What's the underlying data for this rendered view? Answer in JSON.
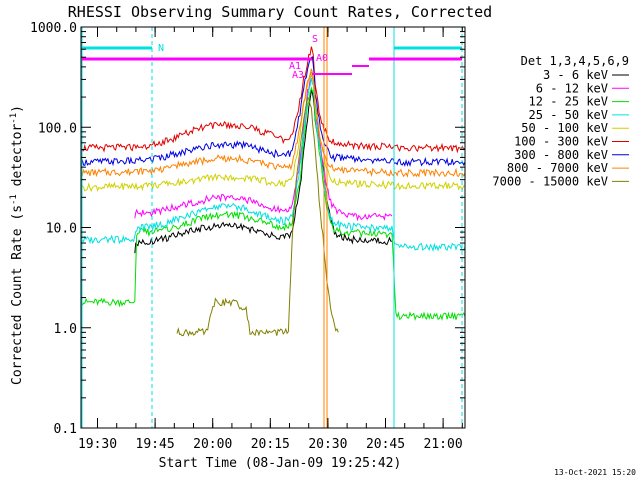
{
  "chart_data": {
    "type": "line",
    "title": "RHESSI Observing Summary Count Rates, Corrected",
    "xlabel": "Start Time (08-Jan-09 19:25:42)",
    "ylabel_main": "Corrected Count Rate (s",
    "ylabel_sup1": "-1",
    "ylabel_mid": " detector",
    "ylabel_sup2": "-1",
    "ylabel_end": ")",
    "yscale": "log",
    "ylim": [
      0.1,
      1000
    ],
    "xlim_minutes": [
      0,
      100
    ],
    "x_ticks": [
      {
        "label": "19:30",
        "t": 4.3
      },
      {
        "label": "19:45",
        "t": 19.3
      },
      {
        "label": "20:00",
        "t": 34.3
      },
      {
        "label": "20:15",
        "t": 49.3
      },
      {
        "label": "20:30",
        "t": 64.3
      },
      {
        "label": "20:45",
        "t": 79.3
      },
      {
        "label": "21:00",
        "t": 94.3
      }
    ],
    "y_ticks": [
      {
        "label": "1000.0",
        "v": 1000
      },
      {
        "label": "100.0",
        "v": 100
      },
      {
        "label": "10.0",
        "v": 10
      },
      {
        "label": "1.0",
        "v": 1
      },
      {
        "label": "0.1",
        "v": 0.1
      }
    ],
    "legend_title": "Det 1,3,4,5,6,9",
    "legend": [
      {
        "label": "3 - 6 keV",
        "color": "#000000"
      },
      {
        "label": "6 - 12 keV",
        "color": "#ff00ff"
      },
      {
        "label": "12 - 25 keV",
        "color": "#00e000"
      },
      {
        "label": "25 - 50 keV",
        "color": "#00e0e0"
      },
      {
        "label": "50 - 100 keV",
        "color": "#d0d000"
      },
      {
        "label": "100 - 300 keV",
        "color": "#e00000"
      },
      {
        "label": "300 - 800 keV",
        "color": "#0000e0"
      },
      {
        "label": "800 - 7000 keV",
        "color": "#ff8000"
      },
      {
        "label": "7000 - 15000 keV",
        "color": "#808000"
      }
    ],
    "series": [
      {
        "label": "3 - 6 keV",
        "color": "#000000",
        "x": [
          14.0,
          14.5,
          18,
          22,
          26,
          30,
          34,
          38,
          42,
          46,
          50,
          53,
          55,
          57,
          58,
          59,
          60,
          60.5,
          61,
          62,
          63,
          64,
          65,
          66,
          68,
          70,
          75,
          80,
          81
        ],
        "y": [
          6,
          7,
          7.2,
          7.8,
          8.6,
          9.5,
          10.2,
          10.5,
          10.2,
          9.2,
          8.2,
          7.8,
          9,
          25,
          55,
          120,
          250,
          200,
          120,
          70,
          40,
          20,
          12,
          9,
          8,
          7.6,
          7.5,
          7.3,
          7.3
        ]
      },
      {
        "label": "6 - 12 keV",
        "color": "#ff00ff",
        "x": [
          14.0,
          14.5,
          18,
          22,
          26,
          30,
          34,
          38,
          42,
          46,
          50,
          53,
          55,
          57,
          58,
          59,
          60,
          60.5,
          61,
          62,
          63,
          64,
          65,
          66,
          68,
          70,
          75,
          80,
          81
        ],
        "y": [
          13,
          14,
          14,
          15,
          16.5,
          18,
          19.5,
          20,
          19.5,
          17.5,
          15.5,
          14.5,
          16,
          45,
          100,
          220,
          330,
          280,
          150,
          80,
          45,
          25,
          18,
          15,
          13.5,
          13,
          13,
          13,
          13
        ]
      },
      {
        "label": "12 - 25 keV",
        "color": "#00e000",
        "x": [
          0,
          14.0,
          14.5,
          18,
          22,
          26,
          30,
          34,
          38,
          42,
          46,
          50,
          53,
          55,
          57,
          58,
          59,
          60,
          60.5,
          61,
          62,
          63,
          64,
          65,
          66,
          68,
          70,
          75,
          80,
          81,
          82,
          100
        ],
        "y": [
          1.8,
          1.8,
          9,
          9,
          9.5,
          10.5,
          11.8,
          13,
          13.5,
          13,
          11.8,
          10.5,
          10,
          11,
          30,
          70,
          160,
          260,
          220,
          120,
          60,
          30,
          16,
          11,
          9.5,
          9,
          8.8,
          8.8,
          8.6,
          8.6,
          1.3,
          1.3
        ]
      },
      {
        "label": "25 - 50 keV",
        "color": "#00e0e0",
        "x": [
          0,
          5,
          10,
          14.0,
          14.5,
          18,
          22,
          26,
          30,
          34,
          38,
          42,
          46,
          50,
          53,
          55,
          57,
          58,
          59,
          60,
          60.5,
          61,
          62,
          63,
          64,
          65,
          66,
          68,
          70,
          75,
          80,
          81,
          82,
          90,
          100
        ],
        "y": [
          7.5,
          7.6,
          7.6,
          7.6,
          10,
          10.2,
          11,
          12.5,
          14,
          15.8,
          16.5,
          15.8,
          14,
          12.2,
          11.5,
          13,
          40,
          90,
          200,
          300,
          260,
          140,
          70,
          35,
          18,
          12.5,
          11,
          10.5,
          10.2,
          10,
          9.8,
          9.8,
          6.5,
          6.4,
          6.4
        ]
      },
      {
        "label": "50 - 100 keV",
        "color": "#d0d000",
        "x": [
          0,
          14,
          18,
          22,
          26,
          30,
          34,
          38,
          42,
          46,
          50,
          53,
          55,
          57,
          58,
          59,
          60,
          60.5,
          61,
          62,
          63,
          64,
          65,
          66,
          68,
          70,
          75,
          80,
          81,
          82,
          100
        ],
        "y": [
          25,
          26,
          26,
          27,
          28,
          30,
          31.5,
          32,
          31.5,
          30,
          28,
          27,
          30,
          80,
          170,
          280,
          350,
          300,
          160,
          90,
          55,
          38,
          32,
          29,
          28,
          27.5,
          27,
          26.5,
          26.5,
          26,
          26
        ]
      },
      {
        "label": "100 - 300 keV",
        "color": "#e00000",
        "x": [
          0,
          14,
          18,
          22,
          26,
          30,
          34,
          38,
          42,
          46,
          50,
          53,
          55,
          57,
          58,
          59,
          60,
          60.5,
          61,
          62,
          63,
          64,
          65,
          66,
          68,
          70,
          75,
          80,
          81,
          82,
          100
        ],
        "y": [
          62,
          63,
          66,
          72,
          82,
          95,
          103,
          105,
          102,
          94,
          82,
          75,
          80,
          180,
          300,
          450,
          600,
          500,
          260,
          150,
          105,
          82,
          74,
          70,
          68,
          66,
          65,
          64,
          64,
          62,
          62
        ]
      },
      {
        "label": "300 - 800 keV",
        "color": "#0000e0",
        "x": [
          0,
          14,
          18,
          22,
          26,
          30,
          34,
          38,
          42,
          46,
          50,
          53,
          55,
          57,
          58,
          59,
          60,
          60.5,
          61,
          62,
          63,
          64,
          65,
          66,
          68,
          70,
          75,
          80,
          81,
          82,
          100
        ],
        "y": [
          45,
          46,
          48,
          51,
          56,
          62,
          66,
          67,
          66,
          61,
          55,
          52,
          56,
          140,
          250,
          380,
          520,
          430,
          220,
          120,
          78,
          60,
          53,
          50,
          49,
          48,
          47,
          46,
          46,
          45,
          45
        ]
      },
      {
        "label": "800 - 7000 keV",
        "color": "#ff8000",
        "x": [
          0,
          14,
          18,
          22,
          26,
          30,
          34,
          38,
          42,
          46,
          50,
          53,
          55,
          57,
          58,
          59,
          60,
          60.5,
          61,
          62,
          63,
          64,
          65,
          66,
          68,
          70,
          75,
          80,
          81,
          82,
          100
        ],
        "y": [
          35,
          36,
          37,
          39,
          42,
          45,
          48,
          49,
          48,
          45,
          41,
          39,
          42,
          100,
          180,
          280,
          400,
          330,
          170,
          90,
          55,
          44,
          40,
          38,
          37,
          36.5,
          36,
          35.5,
          35.5,
          35,
          35
        ]
      },
      {
        "label": "7000 - 15000 keV",
        "color": "#808000",
        "x": [
          25,
          33,
          34,
          35,
          40,
          43,
          44,
          45,
          54,
          55,
          56,
          57,
          58,
          59,
          60,
          61,
          62,
          63,
          64,
          65,
          66,
          67
        ],
        "y": [
          0.9,
          0.9,
          1.5,
          1.8,
          1.8,
          1.5,
          0.9,
          0.9,
          0.9,
          8,
          30,
          60,
          120,
          200,
          150,
          60,
          20,
          8,
          3,
          1.5,
          1,
          0.9
        ]
      }
    ],
    "annotations": [
      {
        "label": "N",
        "color": "#00e0e0"
      },
      {
        "label": "S",
        "color": "#ff00ff"
      },
      {
        "label": "A0",
        "color": "#ff00ff"
      },
      {
        "label": "A1",
        "color": "#ff00ff"
      },
      {
        "label": "A3",
        "color": "#ff00ff"
      }
    ],
    "footer": "13-Oct-2021 15:20"
  }
}
